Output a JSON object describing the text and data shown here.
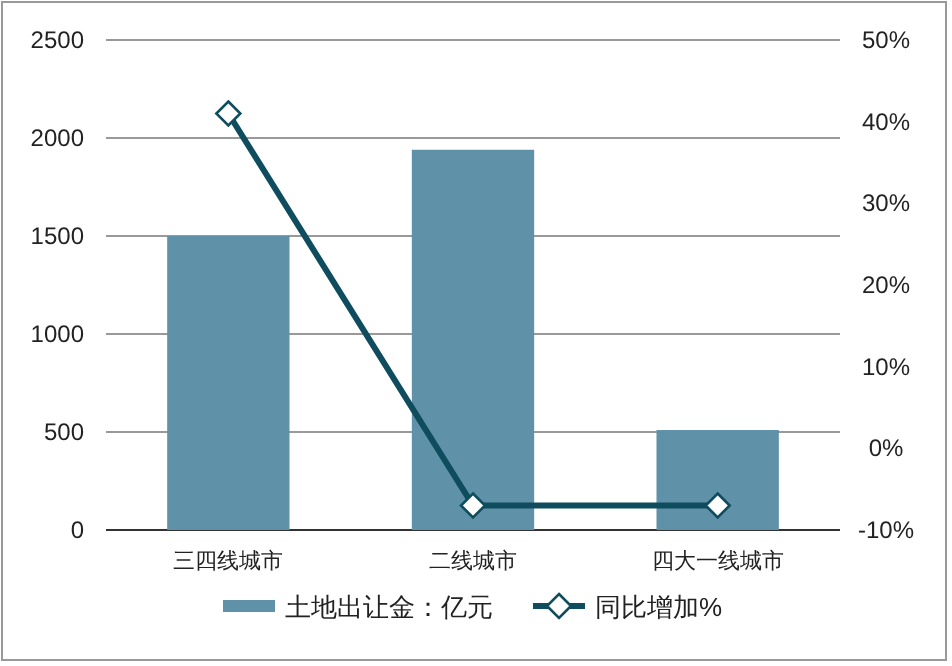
{
  "chart_data": {
    "type": "bar",
    "categories": [
      "三四线城市",
      "二线城市",
      "四大一线城市"
    ],
    "series": [
      {
        "name": "土地出让金：亿元",
        "color": "#5f91a8",
        "values": [
          1500,
          1940,
          510
        ]
      },
      {
        "name": "同比增加%",
        "type": "line",
        "axis": "y2",
        "color": "#0e4c5e",
        "marker": "diamond",
        "values": [
          41,
          -7,
          -7
        ]
      }
    ],
    "ylim": [
      0,
      2500
    ],
    "yticks": [
      0,
      500,
      1000,
      1500,
      2000,
      2500
    ],
    "y2lim": [
      -10,
      50
    ],
    "y2ticks": [
      {
        "value": -10,
        "label": "-10%"
      },
      {
        "value": 0,
        "label": "0%"
      },
      {
        "value": 10,
        "label": "10%"
      },
      {
        "value": 20,
        "label": "20%"
      },
      {
        "value": 30,
        "label": "30%"
      },
      {
        "value": 40,
        "label": "40%"
      },
      {
        "value": 50,
        "label": "50%"
      }
    ],
    "grid": "y",
    "legend": "bottom"
  }
}
